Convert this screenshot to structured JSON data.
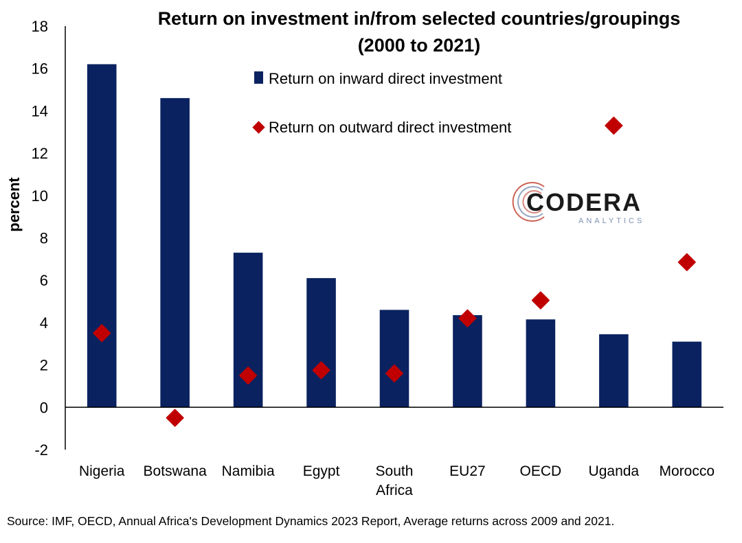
{
  "chart_data": {
    "type": "bar",
    "title_lines": [
      "Return on investment in/from selected countries/groupings",
      "(2000 to 2021)"
    ],
    "ylabel": "percent",
    "ylim": [
      -2,
      18
    ],
    "yticks": [
      "-2",
      "0",
      "2",
      "4",
      "6",
      "8",
      "10",
      "12",
      "14",
      "16",
      "18"
    ],
    "categories": [
      [
        "Nigeria"
      ],
      [
        "Botswana"
      ],
      [
        "Namibia"
      ],
      [
        "Egypt"
      ],
      [
        "South",
        "Africa"
      ],
      [
        "EU27"
      ],
      [
        "OECD"
      ],
      [
        "Uganda"
      ],
      [
        "Morocco"
      ]
    ],
    "series": [
      {
        "name": "Return on inward direct investment",
        "type": "bar",
        "color": "#0b2260",
        "values": [
          16.2,
          14.6,
          7.3,
          6.1,
          4.6,
          4.35,
          4.15,
          3.45,
          3.1
        ]
      },
      {
        "name": "Return on outward direct investment",
        "type": "marker",
        "color": "#c00000",
        "values": [
          3.5,
          -0.5,
          1.5,
          1.75,
          1.6,
          4.2,
          5.05,
          13.3,
          6.85
        ]
      }
    ],
    "legend_position": "top-center",
    "grid": false
  },
  "logo": {
    "name": "CODERA",
    "tagline": "ANALYTICS"
  },
  "source": "Source: IMF, OECD, Annual Africa's Development Dynamics 2023 Report, Average returns across 2009 and 2021."
}
